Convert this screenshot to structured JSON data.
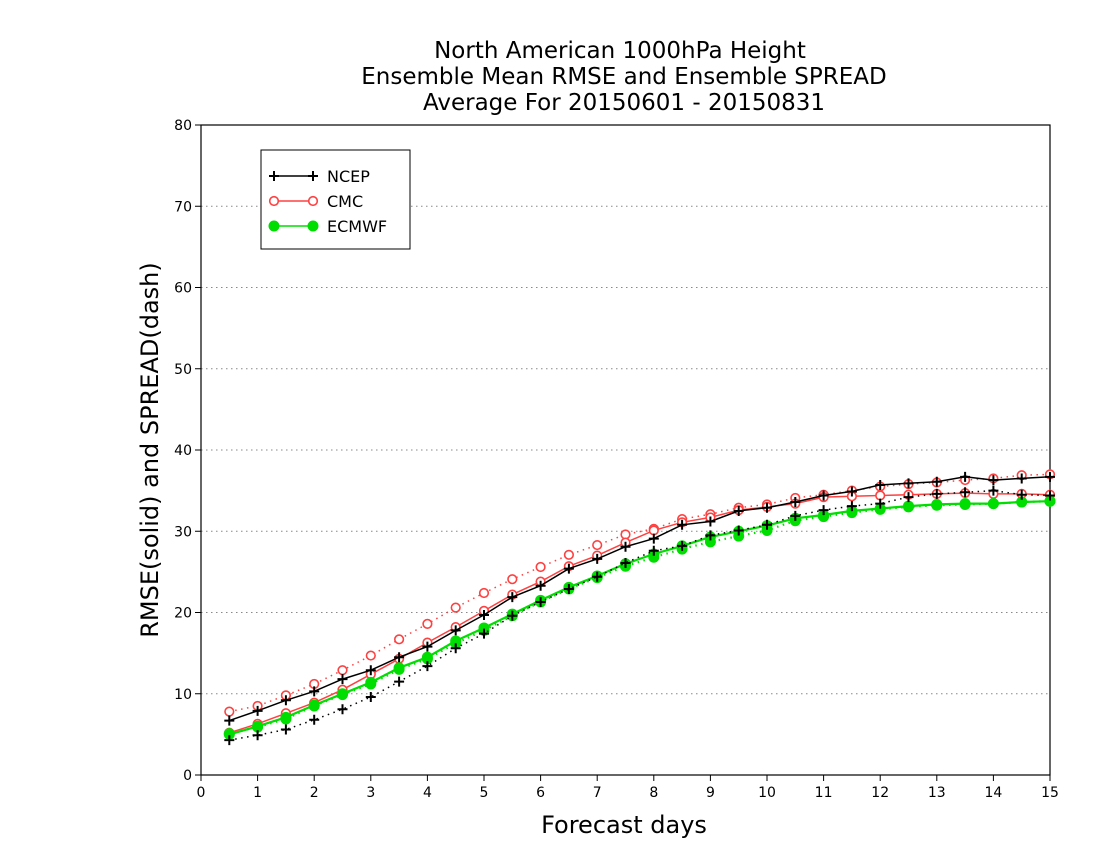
{
  "chart_data": {
    "type": "line",
    "title_lines": [
      "North American 1000hPa Height",
      "Ensemble Mean RMSE and Ensemble SPREAD",
      "Average For 20150601 - 20150831"
    ],
    "xlabel": "Forecast days",
    "ylabel": "RMSE(solid) and SPREAD(dash)",
    "xlim": [
      0,
      15
    ],
    "ylim": [
      0,
      80
    ],
    "x_ticks": [
      0,
      1,
      2,
      3,
      4,
      5,
      6,
      7,
      8,
      9,
      10,
      11,
      12,
      13,
      14,
      15
    ],
    "y_ticks": [
      0,
      10,
      20,
      30,
      40,
      50,
      60,
      70,
      80
    ],
    "grid": "horizontal-dotted",
    "legend_position": "top-left",
    "x": [
      0.5,
      1,
      1.5,
      2,
      2.5,
      3,
      3.5,
      4,
      4.5,
      5,
      5.5,
      6,
      6.5,
      7,
      7.5,
      8,
      8.5,
      9,
      9.5,
      10,
      10.5,
      11,
      11.5,
      12,
      12.5,
      13,
      13.5,
      14,
      14.5,
      15
    ],
    "series": [
      {
        "name": "NCEP",
        "color": "#000000",
        "marker": "plus",
        "rmse": [
          6.7,
          7.9,
          9.2,
          10.3,
          11.8,
          12.9,
          14.5,
          15.8,
          17.8,
          19.7,
          21.9,
          23.3,
          25.4,
          26.6,
          28.1,
          29.1,
          30.8,
          31.2,
          32.5,
          32.9,
          33.6,
          34.4,
          34.9,
          35.7,
          35.9,
          36.1,
          36.7,
          36.3,
          36.5,
          36.7
        ],
        "spread": [
          4.3,
          4.9,
          5.6,
          6.8,
          8.1,
          9.6,
          11.5,
          13.4,
          15.6,
          17.4,
          19.6,
          21.3,
          22.9,
          24.4,
          26.1,
          27.6,
          28.2,
          29.5,
          30.1,
          30.8,
          31.9,
          32.6,
          33.1,
          33.4,
          34.2,
          34.6,
          34.8,
          35.0,
          34.5,
          34.4
        ]
      },
      {
        "name": "CMC",
        "color": "#ff4040",
        "marker": "open-circle",
        "rmse": [
          5.2,
          6.3,
          7.6,
          8.9,
          10.5,
          12.4,
          14.3,
          16.3,
          18.2,
          20.2,
          22.2,
          23.8,
          25.7,
          27.0,
          28.6,
          30.1,
          31.1,
          31.7,
          32.6,
          33.0,
          33.4,
          34.2,
          34.3,
          34.4,
          34.5,
          34.6,
          34.7,
          34.6,
          34.6,
          34.5
        ],
        "spread": [
          7.8,
          8.5,
          9.8,
          11.2,
          12.9,
          14.7,
          16.7,
          18.6,
          20.6,
          22.4,
          24.1,
          25.6,
          27.1,
          28.3,
          29.6,
          30.3,
          31.5,
          32.1,
          32.9,
          33.3,
          34.1,
          34.5,
          35.0,
          35.5,
          35.8,
          36.0,
          36.3,
          36.5,
          36.9,
          37.0
        ]
      },
      {
        "name": "ECMWF",
        "color": "#00dd00",
        "marker": "filled-circle",
        "rmse": [
          5.0,
          6.0,
          7.1,
          8.6,
          10.0,
          11.4,
          13.2,
          14.5,
          16.5,
          18.1,
          19.8,
          21.5,
          23.1,
          24.5,
          26.0,
          27.2,
          28.2,
          29.3,
          30.0,
          30.7,
          31.6,
          32.0,
          32.5,
          32.8,
          33.1,
          33.3,
          33.4,
          33.4,
          33.6,
          33.7
        ],
        "spread": [
          5.1,
          5.9,
          6.9,
          8.5,
          9.9,
          11.2,
          13.0,
          14.3,
          16.2,
          17.8,
          19.6,
          21.3,
          22.9,
          24.3,
          25.7,
          26.8,
          27.8,
          28.7,
          29.4,
          30.1,
          31.3,
          31.8,
          32.3,
          32.7,
          33.0,
          33.2,
          33.3,
          33.4,
          33.6,
          33.7
        ]
      }
    ]
  }
}
